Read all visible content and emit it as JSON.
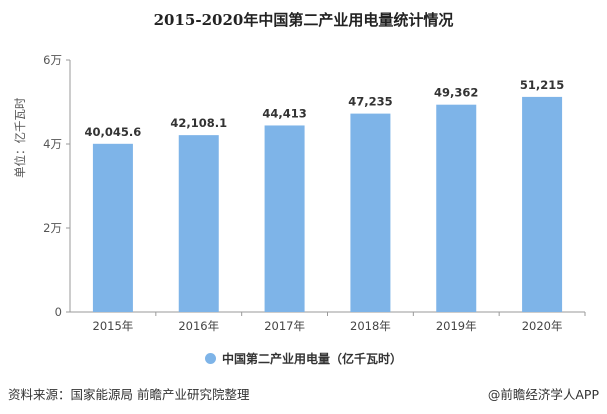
{
  "chart_data": {
    "type": "bar",
    "title": "2015-2020年中国第二产业用电量统计情况",
    "categories": [
      "2015年",
      "2016年",
      "2017年",
      "2018年",
      "2019年",
      "2020年"
    ],
    "series": [
      {
        "name": "中国第二产业用电量（亿千瓦时）",
        "values": [
          40045.6,
          42108.1,
          44413,
          47235,
          49362,
          51215
        ]
      }
    ],
    "data_labels": [
      "40,045.6",
      "42,108.1",
      "44,413",
      "47,235",
      "49,362",
      "51,215"
    ],
    "ylabel": "单位：亿千瓦时",
    "ylim": [
      0,
      60000
    ],
    "yticks": [
      0,
      20000,
      40000,
      60000
    ],
    "ytick_labels": [
      "0",
      "2万",
      "4万",
      "6万"
    ],
    "grid": false,
    "legend_position": "bottom",
    "bar_color": "#7eb4e8"
  },
  "footer": {
    "source": "资料来源：国家能源局 前瞻产业研究院整理",
    "brand": "@前瞻经济学人APP"
  }
}
